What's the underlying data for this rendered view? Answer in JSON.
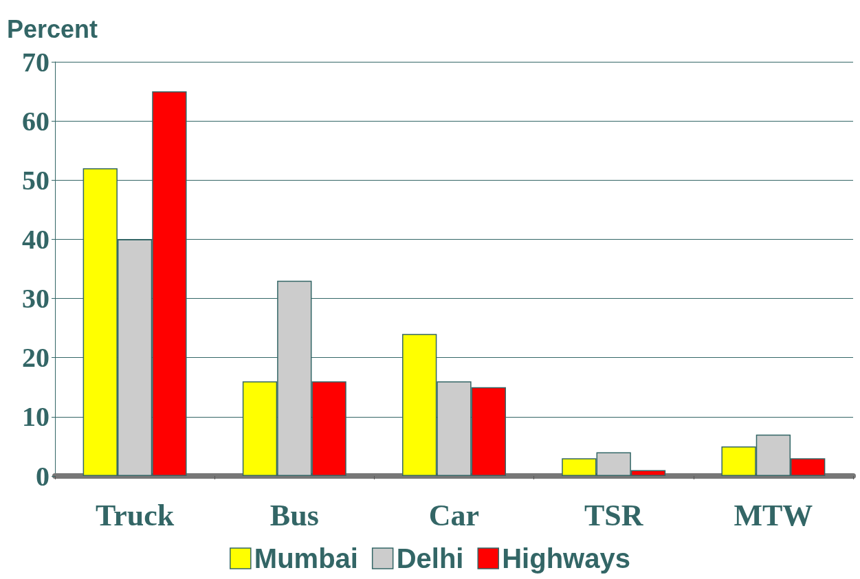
{
  "chart_data": {
    "type": "bar",
    "ylabel": "Percent",
    "categories": [
      "Truck",
      "Bus",
      "Car",
      "TSR",
      "MTW"
    ],
    "series": [
      {
        "name": "Mumbai",
        "color": "#ffff00",
        "values": [
          52,
          16,
          24,
          3,
          5
        ]
      },
      {
        "name": "Delhi",
        "color": "#cccccc",
        "values": [
          40,
          33,
          16,
          4,
          7
        ]
      },
      {
        "name": "Highways",
        "color": "#ff0000",
        "values": [
          65,
          16,
          15,
          1,
          3
        ]
      }
    ],
    "ylim": [
      0,
      70
    ],
    "yticks": [
      0,
      10,
      20,
      30,
      40,
      50,
      60,
      70
    ],
    "grid": "y",
    "legend": "bottom"
  }
}
